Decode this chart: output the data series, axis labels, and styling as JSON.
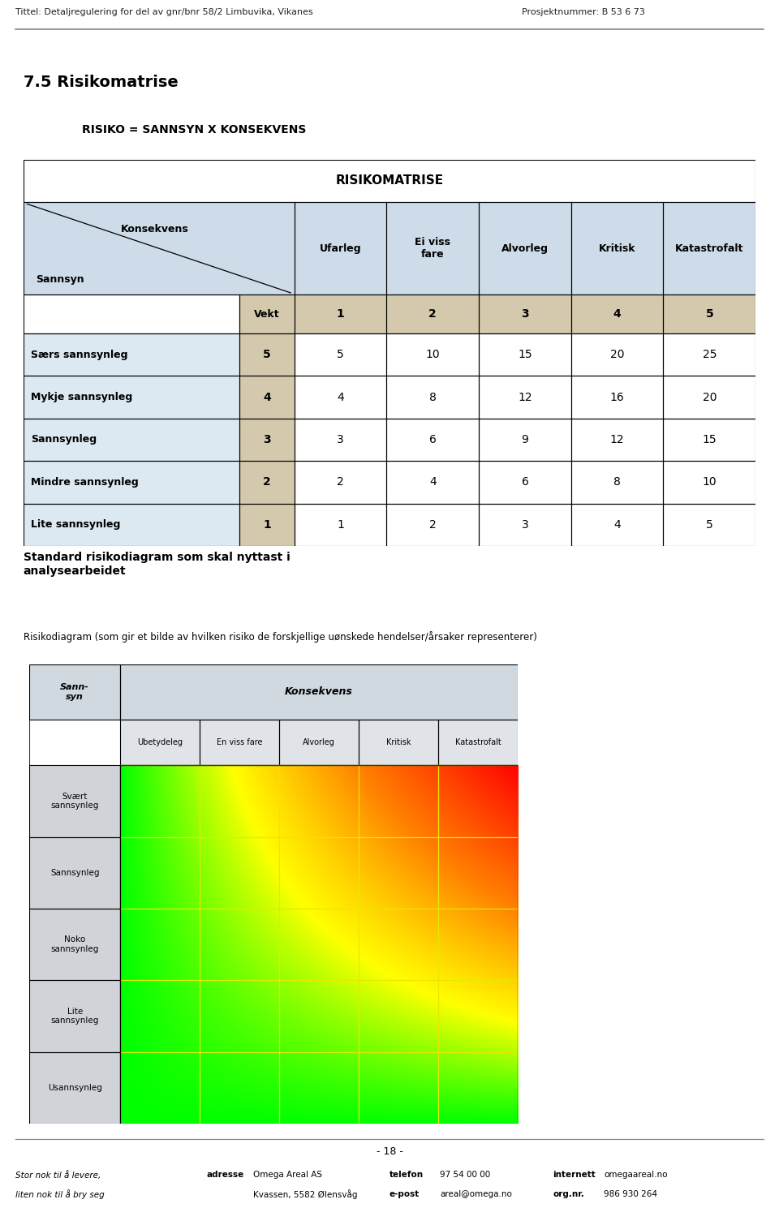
{
  "title_left": "Tittel: Detaljregulering for del av gnr/bnr 58/2 Limbuvika, Vikanes",
  "title_right": "Prosjektnummer: B 53 6 73",
  "section_title": "7.5 Risikomatrise",
  "formula_label": "RISIKO = SANNSYN X KONSEKVENS",
  "table_title": "RISIKOMATRISE",
  "header_konsekvens": "Konsekvens",
  "header_sannsyn": "Sannsyn",
  "header_vekt": "Vekt",
  "col_headers": [
    "Ufarleg",
    "Ei viss\nfare",
    "Alvorleg",
    "Kritisk",
    "Katastrofalt"
  ],
  "col_weights": [
    "1",
    "2",
    "3",
    "4",
    "5"
  ],
  "row_labels": [
    "Særs sannsynleg",
    "Mykje sannsynleg",
    "Sannsynleg",
    "Mindre sannsynleg",
    "Lite sannsynleg"
  ],
  "row_weights": [
    "5",
    "4",
    "3",
    "2",
    "1"
  ],
  "table_data": [
    [
      "5",
      "10",
      "15",
      "20",
      "25"
    ],
    [
      "4",
      "8",
      "12",
      "16",
      "20"
    ],
    [
      "3",
      "6",
      "9",
      "12",
      "15"
    ],
    [
      "2",
      "4",
      "6",
      "8",
      "10"
    ],
    [
      "1",
      "2",
      "3",
      "4",
      "5"
    ]
  ],
  "diagram_title_bold": "Standard risikodiagram som skal nyttast i\nanalysearbeidet",
  "diagram_subtitle": "Risikodiagram (som gir et bilde av hvilken risiko de forskjellige uønskede hendelser/årsaker representerer)",
  "diagram_sann_header": "Sann-\nsyn",
  "diagram_konsekvens_header": "Konsekvens",
  "diagram_col_headers": [
    "Ubetydeleg",
    "En viss fare",
    "Alvorleg",
    "Kritisk",
    "Katastrofalt"
  ],
  "diagram_row_labels": [
    "Svært\nsannsynleg",
    "Sannsynleg",
    "Noko\nsannsynleg",
    "Lite\nsannsynleg",
    "Usannsynleg"
  ],
  "footer_left1": "Stor nok til å levere,",
  "footer_left2": "liten nok til å bry seg",
  "footer_addr_label": "adresse",
  "footer_addr": "Omega Areal AS\nKvassen, 5582 Ølensvåg",
  "footer_tel_label": "telefon",
  "footer_tel": "97 54 00 00",
  "footer_email_label": "e-post",
  "footer_email": "areal@omega.no",
  "footer_web_label": "internett",
  "footer_web": "omegaareal.no",
  "footer_org_label": "org.nr.",
  "footer_org": "986 930 264",
  "page_number": "- 18 -",
  "bg_color": "#ffffff",
  "table_header_bg": "#cddce8",
  "table_weight_bg": "#d4c9ad",
  "table_row_bg": "#dce8f2",
  "diagram_header_bg": "#d0d8e0",
  "diagram_subheader_bg": "#e0e4e8",
  "diagram_row_bg": "#d0d4d8"
}
